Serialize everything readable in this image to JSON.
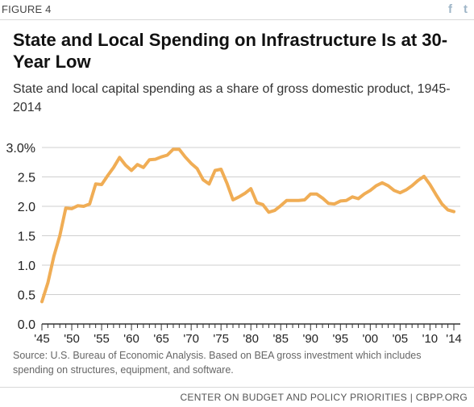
{
  "figure_label": "FIGURE 4",
  "share": {
    "facebook_glyph": "f",
    "twitter_glyph": "t"
  },
  "title": "State and Local Spending on Infrastructure Is at 30-Year Low",
  "subtitle": "State and local capital spending as a share of gross domestic product, 1945-2014",
  "source": "Source: U.S. Bureau of Economic Analysis. Based on BEA gross investment which includes spending on structures, equipment, and software.",
  "footer": "CENTER ON BUDGET AND POLICY PRIORITIES | CBPP.ORG",
  "colors": {
    "line": "#f0ad55",
    "grid": "#cfcfcf",
    "axis": "#333333"
  },
  "chart_data": {
    "type": "line",
    "title": "",
    "xlabel": "",
    "ylabel": "",
    "xlim": [
      1945,
      2014
    ],
    "ylim": [
      0,
      3.0
    ],
    "grid": true,
    "y_ticks": [
      0,
      0.5,
      1.0,
      1.5,
      2.0,
      2.5,
      3.0
    ],
    "y_tick_labels": [
      "0.0",
      "0.5",
      "1.0",
      "1.5",
      "2.0",
      "2.5",
      "3.0%"
    ],
    "x_ticks": [
      1945,
      1950,
      1955,
      1960,
      1965,
      1970,
      1975,
      1980,
      1985,
      1990,
      1995,
      2000,
      2005,
      2010,
      2014
    ],
    "x_tick_labels": [
      "'45",
      "'50",
      "'55",
      "'60",
      "'65",
      "'70",
      "'75",
      "'80",
      "'85",
      "'90",
      "'95",
      "'00",
      "'05",
      "'10",
      "'14"
    ],
    "series": [
      {
        "x": [
          1945,
          1946,
          1947,
          1948,
          1949,
          1950,
          1951,
          1952,
          1953,
          1954,
          1955,
          1956,
          1957,
          1958,
          1959,
          1960,
          1961,
          1962,
          1963,
          1964,
          1965,
          1966,
          1967,
          1968,
          1969,
          1970,
          1971,
          1972,
          1973,
          1974,
          1975,
          1976,
          1977,
          1978,
          1979,
          1980,
          1981,
          1982,
          1983,
          1984,
          1985,
          1986,
          1987,
          1988,
          1989,
          1990,
          1991,
          1992,
          1993,
          1994,
          1995,
          1996,
          1997,
          1998,
          1999,
          2000,
          2001,
          2002,
          2003,
          2004,
          2005,
          2006,
          2007,
          2008,
          2009,
          2010,
          2011,
          2012,
          2013,
          2014
        ],
        "values": [
          0.38,
          0.7,
          1.15,
          1.5,
          1.97,
          1.96,
          2.01,
          2.0,
          2.04,
          2.38,
          2.37,
          2.52,
          2.66,
          2.83,
          2.7,
          2.61,
          2.71,
          2.66,
          2.79,
          2.8,
          2.84,
          2.87,
          2.97,
          2.97,
          2.84,
          2.73,
          2.64,
          2.45,
          2.38,
          2.61,
          2.63,
          2.39,
          2.11,
          2.16,
          2.22,
          2.3,
          2.06,
          2.03,
          1.9,
          1.93,
          2.01,
          2.1,
          2.1,
          2.1,
          2.11,
          2.21,
          2.21,
          2.14,
          2.05,
          2.04,
          2.09,
          2.1,
          2.16,
          2.13,
          2.21,
          2.27,
          2.35,
          2.4,
          2.35,
          2.27,
          2.23,
          2.28,
          2.35,
          2.44,
          2.51,
          2.37,
          2.2,
          2.04,
          1.94,
          1.91
        ]
      }
    ]
  }
}
